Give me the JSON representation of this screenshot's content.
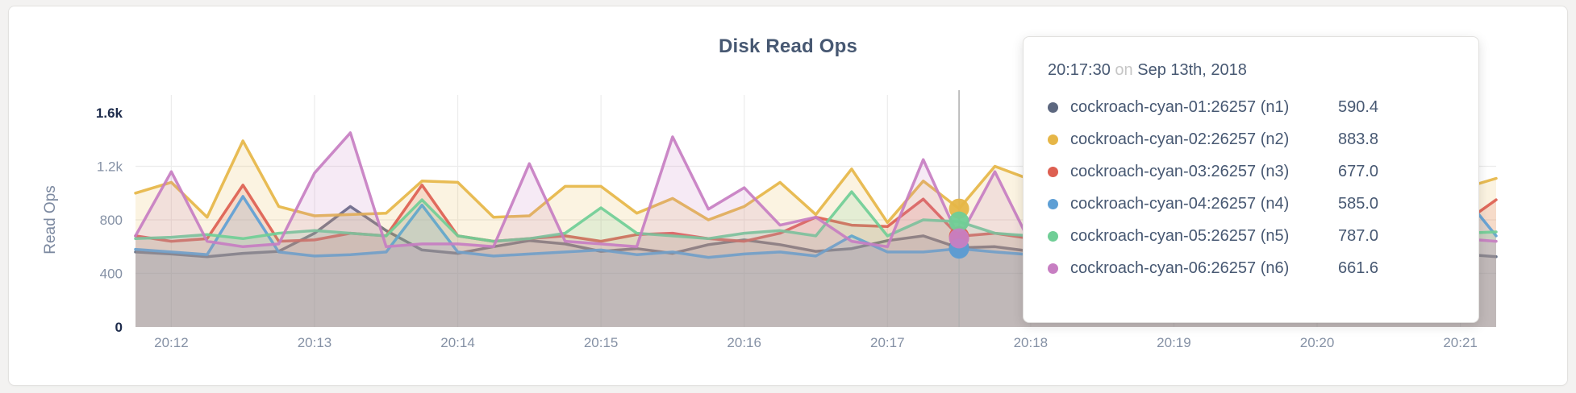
{
  "card": {
    "title": "Disk Read Ops"
  },
  "y_axis": {
    "label": "Read Ops",
    "ticks": [
      {
        "label": "0",
        "value": 0,
        "extreme": true
      },
      {
        "label": "400",
        "value": 400,
        "extreme": false
      },
      {
        "label": "800",
        "value": 800,
        "extreme": false
      },
      {
        "label": "1.2k",
        "value": 1200,
        "extreme": false
      },
      {
        "label": "1.6k",
        "value": 1600,
        "extreme": true
      }
    ],
    "gridline_values": [
      400,
      800,
      1200
    ]
  },
  "x_axis": {
    "ticks": [
      {
        "label": "20:12",
        "t": 720
      },
      {
        "label": "20:13",
        "t": 780
      },
      {
        "label": "20:14",
        "t": 840
      },
      {
        "label": "20:15",
        "t": 900
      },
      {
        "label": "20:16",
        "t": 960
      },
      {
        "label": "20:17",
        "t": 1020
      },
      {
        "label": "20:18",
        "t": 1080
      },
      {
        "label": "20:19",
        "t": 1140
      },
      {
        "label": "20:20",
        "t": 1200
      },
      {
        "label": "20:21",
        "t": 1260
      }
    ]
  },
  "tooltip": {
    "time": "20:17:30",
    "preposition": "on",
    "date": "Sep 13th, 2018",
    "rows": [
      {
        "name": "cockroach-cyan-01:26257 (n1)",
        "value": "590.4",
        "color": "#5c677f"
      },
      {
        "name": "cockroach-cyan-02:26257 (n2)",
        "value": "883.8",
        "color": "#e6b647"
      },
      {
        "name": "cockroach-cyan-03:26257 (n3)",
        "value": "677.0",
        "color": "#dd5f51"
      },
      {
        "name": "cockroach-cyan-04:26257 (n4)",
        "value": "585.0",
        "color": "#5e9fd5"
      },
      {
        "name": "cockroach-cyan-05:26257 (n5)",
        "value": "787.0",
        "color": "#70ce96"
      },
      {
        "name": "cockroach-cyan-06:26257 (n6)",
        "value": "661.6",
        "color": "#c77ec2"
      }
    ]
  },
  "chart_data": {
    "type": "area",
    "title": "Disk Read Ops",
    "ylabel": "Read Ops",
    "ylim": [
      0,
      1600
    ],
    "legend_position": "tooltip",
    "grid": true,
    "x_seconds": [
      705,
      720,
      735,
      750,
      765,
      780,
      795,
      810,
      825,
      840,
      855,
      870,
      885,
      900,
      915,
      930,
      945,
      960,
      975,
      990,
      1005,
      1020,
      1035,
      1050,
      1065,
      1080,
      1095,
      1110,
      1125,
      1140,
      1155,
      1170,
      1185,
      1200,
      1215,
      1230,
      1245,
      1260,
      1275
    ],
    "hover": {
      "t": 1050,
      "time": "20:17:30",
      "date": "Sep 13th, 2018"
    },
    "series": [
      {
        "name": "cockroach-cyan-01:26257 (n1)",
        "color": "#5c677f",
        "values": [
          560,
          545,
          525,
          550,
          565,
          700,
          900,
          720,
          575,
          550,
          600,
          645,
          620,
          565,
          585,
          550,
          615,
          650,
          615,
          565,
          585,
          645,
          680,
          590.4,
          600,
          565,
          595,
          625,
          585,
          565,
          605,
          580,
          615,
          595,
          565,
          585,
          615,
          545,
          525
        ]
      },
      {
        "name": "cockroach-cyan-02:26257 (n2)",
        "color": "#e6b647",
        "values": [
          1000,
          1080,
          820,
          1390,
          900,
          830,
          840,
          850,
          1090,
          1080,
          820,
          830,
          1050,
          1050,
          850,
          960,
          800,
          900,
          1080,
          840,
          1180,
          780,
          1090,
          883.8,
          1200,
          1100,
          830,
          950,
          880,
          1050,
          1080,
          840,
          900,
          860,
          1030,
          880,
          820,
          1030,
          1110
        ]
      },
      {
        "name": "cockroach-cyan-03:26257 (n3)",
        "color": "#dd5f51",
        "values": [
          680,
          640,
          660,
          1060,
          640,
          650,
          700,
          680,
          1060,
          680,
          640,
          660,
          680,
          640,
          690,
          700,
          660,
          640,
          700,
          820,
          760,
          750,
          955,
          677,
          700,
          660,
          680,
          700,
          650,
          680,
          700,
          660,
          640,
          700,
          680,
          650,
          700,
          760,
          950
        ]
      },
      {
        "name": "cockroach-cyan-04:26257 (n4)",
        "color": "#5e9fd5",
        "values": [
          580,
          560,
          540,
          975,
          560,
          530,
          540,
          560,
          910,
          560,
          530,
          545,
          560,
          575,
          540,
          560,
          520,
          545,
          560,
          530,
          680,
          560,
          560,
          585,
          560,
          540,
          560,
          580,
          545,
          560,
          540,
          560,
          580,
          550,
          560,
          540,
          560,
          1010,
          680
        ]
      },
      {
        "name": "cockroach-cyan-05:26257 (n5)",
        "color": "#70ce96",
        "values": [
          660,
          670,
          690,
          660,
          700,
          720,
          700,
          680,
          950,
          680,
          640,
          660,
          700,
          890,
          700,
          680,
          660,
          700,
          720,
          680,
          1010,
          680,
          800,
          787,
          700,
          680,
          660,
          700,
          720,
          680,
          660,
          700,
          680,
          660,
          700,
          680,
          660,
          700,
          710
        ]
      },
      {
        "name": "cockroach-cyan-06:26257 (n6)",
        "color": "#c77ec2",
        "values": [
          680,
          1160,
          640,
          600,
          620,
          1150,
          1450,
          600,
          620,
          620,
          600,
          1220,
          640,
          620,
          600,
          1420,
          880,
          1040,
          760,
          820,
          640,
          600,
          1250,
          661.6,
          1160,
          620,
          600,
          640,
          620,
          600,
          640,
          620,
          600,
          640,
          620,
          600,
          640,
          660,
          640
        ]
      }
    ]
  }
}
